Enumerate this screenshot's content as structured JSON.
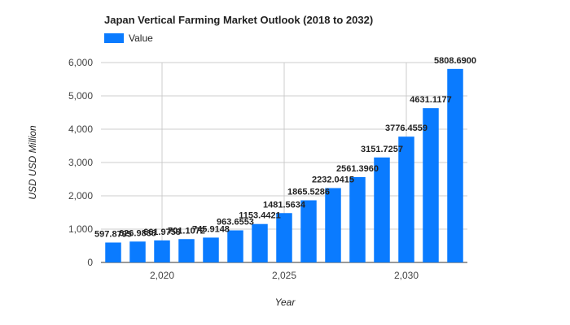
{
  "chart_data": {
    "type": "bar",
    "title": "Japan Vertical Farming Market Outlook (2018 to 2032)",
    "xlabel": "Year",
    "ylabel": "USD USD Million",
    "series": [
      {
        "name": "Value",
        "color": "#0a7bff",
        "x": [
          2018,
          2019,
          2020,
          2021,
          2022,
          2023,
          2024,
          2025,
          2026,
          2027,
          2028,
          2029,
          2030,
          2031,
          2032
        ],
        "values": [
          597.8795,
          626.9838,
          661.9758,
          701.1072,
          745.9148,
          963.6553,
          1153.4421,
          1481.5634,
          1865.5286,
          2232.0415,
          2561.396,
          3151.7257,
          3776.4559,
          4631.1177,
          5808.69
        ],
        "labels": [
          "597.8795",
          "626.9838",
          "661.9758",
          "701.1072",
          "745.9148",
          "963.6553",
          "1153.4421",
          "1481.5634",
          "1865.5286",
          "2232.0415",
          "2561.3960",
          "3151.7257",
          "3776.4559",
          "4631.1177",
          "5808.6900"
        ]
      }
    ],
    "ylim": [
      0,
      6000
    ],
    "yticks": [
      0,
      1000,
      2000,
      3000,
      4000,
      5000,
      6000
    ],
    "ytick_labels": [
      "0",
      "1,000",
      "2,000",
      "3,000",
      "4,000",
      "5,000",
      "6,000"
    ],
    "xlim": [
      2017.5,
      2032.5
    ],
    "xticks": [
      2020,
      2025,
      2030
    ],
    "xtick_labels": [
      "2,020",
      "2,025",
      "2,030"
    ],
    "grid": true,
    "legend": "top-left"
  }
}
